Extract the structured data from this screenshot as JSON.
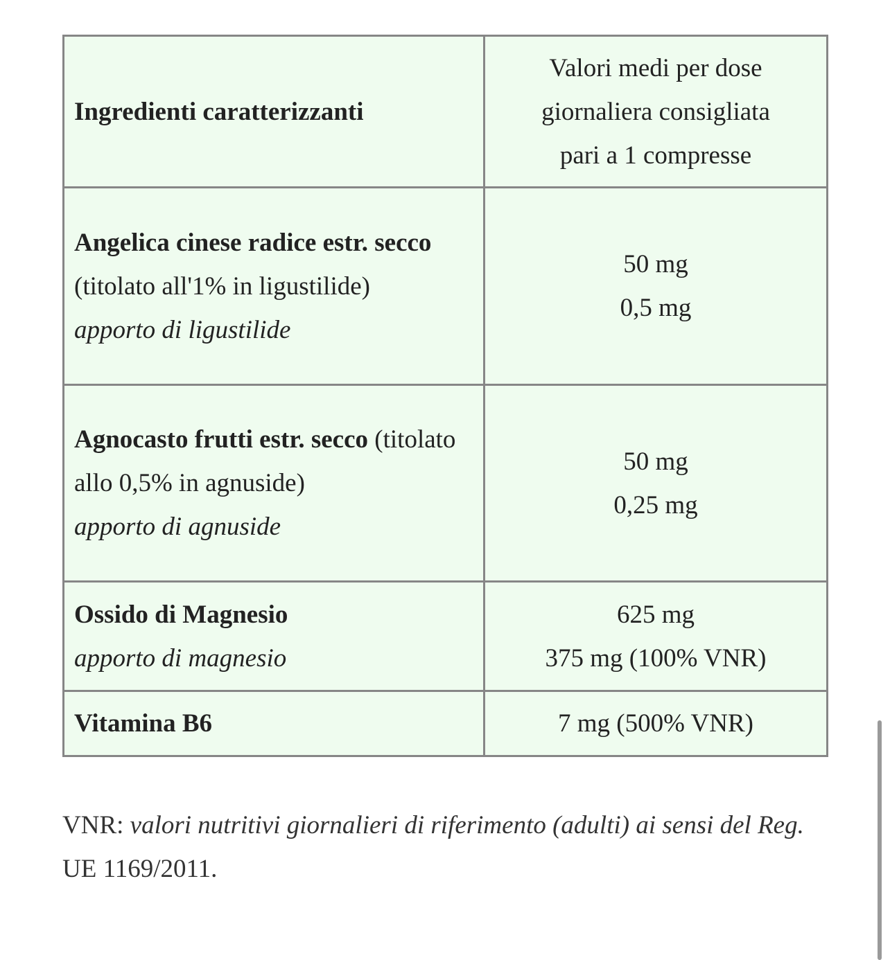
{
  "header": {
    "col1": "Ingredienti caratterizzanti",
    "col2_lines": [
      "Valori medi per dose",
      "giornaliera consigliata",
      "pari a 1 compresse"
    ]
  },
  "rows": [
    {
      "name_bold": "Angelica cinese radice estr. secco",
      "name_detail": " (titolato all'1% in ligustilide)",
      "sub": "apporto di ligustilide",
      "values": [
        "50 mg",
        "0,5 mg"
      ]
    },
    {
      "name_bold": "Agnocasto frutti estr. secco",
      "name_detail": " (titolato allo 0,5% in agnuside)",
      "sub": "apporto di agnuside",
      "values": [
        "50 mg",
        "0,25 mg"
      ]
    },
    {
      "name_bold": "Ossido di Magnesio",
      "name_detail": "",
      "sub": "apporto di magnesio",
      "values": [
        "625 mg",
        "375 mg (100% VNR)"
      ]
    },
    {
      "name_bold": "Vitamina B6",
      "name_detail": "",
      "sub": "",
      "values": [
        "7 mg (500% VNR)"
      ]
    }
  ],
  "note": {
    "prefix": "VNR: ",
    "italic": "valori nutritivi giornalieri di riferimento (adulti) ai sensi del Reg.",
    "suffix": " UE 1169/2011."
  },
  "colors": {
    "table_bg": "#effcef",
    "border": "#868686"
  }
}
